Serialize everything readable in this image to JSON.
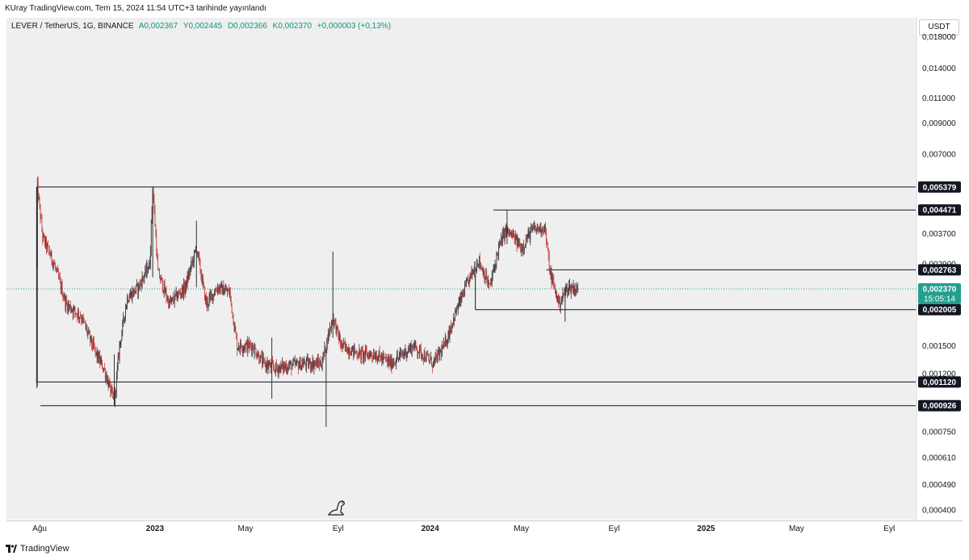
{
  "publisher_text": "KUray TradingView.com, Tem 15, 2024 11:54 UTC+3 tarihinde yayınlandı",
  "symbol": {
    "name": "LEVER / TetherUS, 1G, BINANCE",
    "ohlc": [
      "A0,002367",
      "Y0,002445",
      "D0,002366",
      "K0,002370",
      "+0,000003 (+0,13%)"
    ]
  },
  "currency": "USDT",
  "footer_brand": "TradingView",
  "colors": {
    "up": "#2f3134",
    "down": "#c23b3b",
    "last_price": "#22a08f",
    "label_bg": "#131722"
  },
  "chart_data": {
    "type": "candlestick",
    "scale": "log",
    "y_tick_labels": [
      "0,018000",
      "0,014000",
      "0,011000",
      "0,009000",
      "0,007000",
      "0,003700",
      "0,002900",
      "0,001500",
      "0,001200",
      "0,000750",
      "0,000610",
      "0,000490",
      "0,000400"
    ],
    "y_ticks": [
      0.018,
      0.014,
      0.011,
      0.009,
      0.007,
      0.0037,
      0.0029,
      0.0015,
      0.0012,
      0.00075,
      0.00061,
      0.00049,
      0.0004
    ],
    "ylim": [
      0.00037,
      0.021
    ],
    "x_tick_labels": [
      "Ağu",
      "2023",
      "May",
      "Eyl",
      "2024",
      "May",
      "Eyl",
      "2025",
      "May",
      "Eyl"
    ],
    "x_ticks": [
      "2022-08-01",
      "2023-01-01",
      "2023-05-01",
      "2023-09-01",
      "2024-01-01",
      "2024-05-01",
      "2024-09-01",
      "2025-01-01",
      "2025-05-01",
      "2025-09-01"
    ],
    "xlim": [
      "2022-06-18",
      "2025-10-05"
    ],
    "first_date": "2022-07-28",
    "last_date": "2024-07-15",
    "last_price": 0.00237,
    "last_price_label": "0,002370",
    "countdown": "15:05:14",
    "key_points": [
      [
        "2022-07-28",
        0.0011
      ],
      [
        "2022-07-29",
        0.00538
      ],
      [
        "2022-08-05",
        0.0036
      ],
      [
        "2022-08-20",
        0.0029
      ],
      [
        "2022-09-05",
        0.0021
      ],
      [
        "2022-09-25",
        0.0019
      ],
      [
        "2022-10-15",
        0.0014
      ],
      [
        "2022-10-25",
        0.00125
      ],
      [
        "2022-11-08",
        0.00095
      ],
      [
        "2022-11-15",
        0.0015
      ],
      [
        "2022-11-25",
        0.0022
      ],
      [
        "2022-12-10",
        0.0024
      ],
      [
        "2022-12-25",
        0.0029
      ],
      [
        "2022-12-29",
        0.00538
      ],
      [
        "2023-01-05",
        0.0027
      ],
      [
        "2023-01-20",
        0.0021
      ],
      [
        "2023-02-10",
        0.0024
      ],
      [
        "2023-02-25",
        0.0033
      ],
      [
        "2023-03-10",
        0.0021
      ],
      [
        "2023-03-25",
        0.0024
      ],
      [
        "2023-04-10",
        0.0023
      ],
      [
        "2023-04-20",
        0.0015
      ],
      [
        "2023-05-10",
        0.0015
      ],
      [
        "2023-05-25",
        0.0013
      ],
      [
        "2023-06-10",
        0.00125
      ],
      [
        "2023-07-01",
        0.00128
      ],
      [
        "2023-07-20",
        0.0013
      ],
      [
        "2023-08-10",
        0.0013
      ],
      [
        "2023-08-25",
        0.0019
      ],
      [
        "2023-09-05",
        0.0015
      ],
      [
        "2023-10-01",
        0.0014
      ],
      [
        "2023-10-20",
        0.0014
      ],
      [
        "2023-11-10",
        0.0013
      ],
      [
        "2023-11-25",
        0.0014
      ],
      [
        "2023-12-10",
        0.0015
      ],
      [
        "2024-01-05",
        0.0013
      ],
      [
        "2024-01-20",
        0.0015
      ],
      [
        "2024-02-05",
        0.002
      ],
      [
        "2024-02-20",
        0.0025
      ],
      [
        "2024-03-05",
        0.003
      ],
      [
        "2024-03-20",
        0.0024
      ],
      [
        "2024-04-01",
        0.0033
      ],
      [
        "2024-04-10",
        0.0038
      ],
      [
        "2024-04-20",
        0.0036
      ],
      [
        "2024-05-01",
        0.0033
      ],
      [
        "2024-05-15",
        0.0038
      ],
      [
        "2024-06-01",
        0.0039
      ],
      [
        "2024-06-08",
        0.0027
      ],
      [
        "2024-06-20",
        0.0021
      ],
      [
        "2024-07-01",
        0.0024
      ],
      [
        "2024-07-15",
        0.00237
      ]
    ],
    "levels": [
      {
        "value": 0.005379,
        "label": "0,005379",
        "from": "2022-07-28"
      },
      {
        "value": 0.004471,
        "label": "0,004471",
        "from": "2024-03-25"
      },
      {
        "value": 0.002763,
        "label": "0,002763",
        "from": "2024-06-03"
      },
      {
        "value": 0.002005,
        "label": "0,002005",
        "from": "2024-03-01"
      },
      {
        "value": 0.00112,
        "label": "0,001120",
        "from": "2022-07-28"
      },
      {
        "value": 0.000926,
        "label": "0,000926",
        "from": "2022-08-02"
      }
    ],
    "range_box": {
      "from": "2022-07-28",
      "top": 0.005379,
      "bottom": 0.00112
    },
    "box_2024": {
      "from": "2024-03-01",
      "top": 0.002763,
      "bottom": 0.002005
    }
  }
}
